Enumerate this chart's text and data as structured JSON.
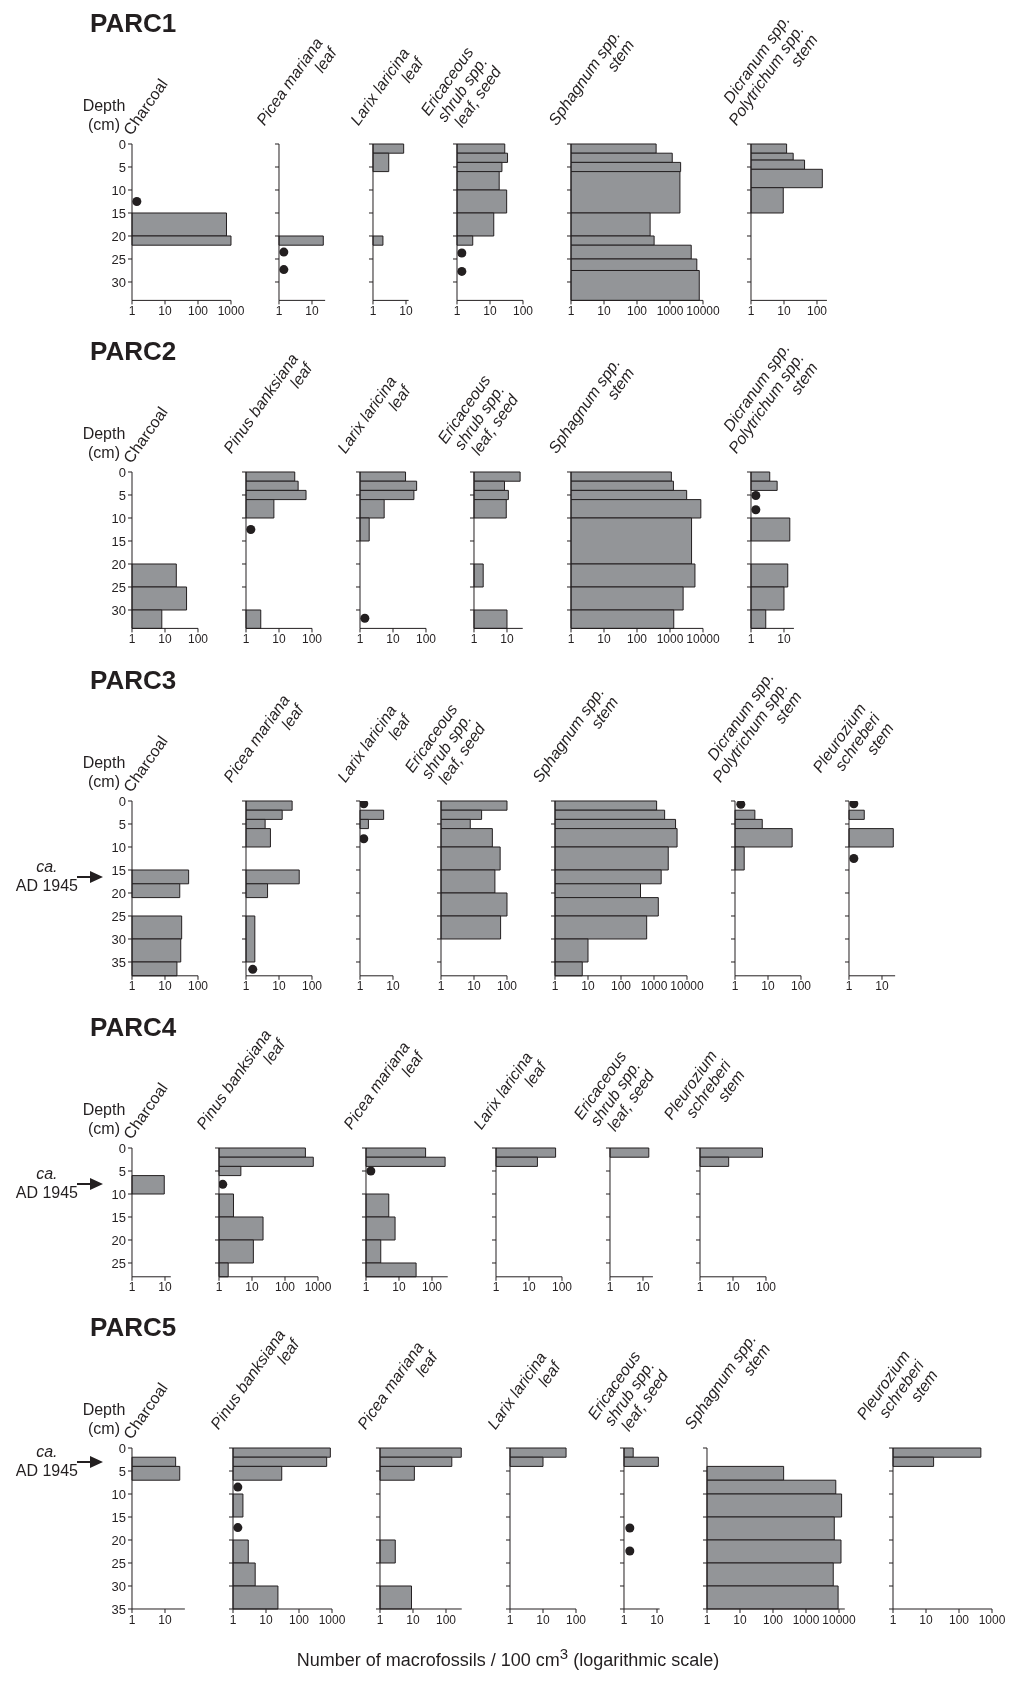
{
  "chart_data": [
    {
      "type": "histogram",
      "orientation": "horizontal",
      "log": "x",
      "annotations": [
        "PARC1"
      ],
      "ylabel": "Depth\n(cm)",
      "title": "Charcoal",
      "bins": [
        15,
        20,
        22
      ],
      "values": [
        730,
        1000
      ],
      "color": "#939598",
      "xlim": [
        1,
        1000
      ],
      "xticks": [
        1,
        10,
        100,
        1000
      ],
      "ylim": [
        34,
        0
      ],
      "yticks": [
        0,
        5,
        10,
        15,
        20,
        25,
        30
      ],
      "marker": "circle",
      "series": [
        {
          "type": "scatter",
          "x": [
            12.5
          ],
          "values": [
            1.4
          ],
          "color": "#231f20"
        }
      ]
    },
    {
      "type": "histogram",
      "orientation": "horizontal",
      "log": "x",
      "title": "Picea mariana\nleaf",
      "bins": [
        20,
        22
      ],
      "values": [
        22
      ],
      "color": "#939598",
      "xlim": [
        1,
        25
      ],
      "xticks": [
        1,
        10
      ],
      "ylim": [
        34,
        0
      ],
      "yticks": [
        0,
        5,
        10,
        15,
        20,
        25,
        30
      ],
      "tick_labels": "x",
      "marker": "circle",
      "series": [
        {
          "type": "scatter",
          "x": [
            23.5,
            27.3
          ],
          "values": [
            1.4,
            1.4
          ],
          "color": "#231f20"
        }
      ]
    },
    {
      "type": "histogram",
      "orientation": "horizontal",
      "log": "x",
      "title": "Larix laricina\nleaf",
      "bins": [
        0,
        2,
        6,
        20,
        22
      ],
      "values": [
        8.5,
        3,
        null,
        2
      ],
      "color": "#939598",
      "xlim": [
        1,
        12
      ],
      "xticks": [
        1,
        10
      ],
      "ylim": [
        34,
        0
      ],
      "yticks": [
        0,
        5,
        10,
        15,
        20,
        25,
        30
      ],
      "tick_labels": "x"
    },
    {
      "type": "histogram",
      "orientation": "horizontal",
      "log": "x",
      "title": "Ericaceous\nshrub spp.\nleaf, seed",
      "bins": [
        0,
        2,
        4,
        6,
        10,
        15,
        20,
        22
      ],
      "values": [
        28,
        34,
        23,
        19,
        32,
        13,
        3
      ],
      "color": "#939598",
      "xlim": [
        1,
        100
      ],
      "xticks": [
        1,
        10,
        100
      ],
      "ylim": [
        34,
        0
      ],
      "yticks": [
        0,
        5,
        10,
        15,
        20,
        25,
        30
      ],
      "tick_labels": "x",
      "marker": "circle",
      "series": [
        {
          "type": "scatter",
          "x": [
            23.7,
            27.7
          ],
          "values": [
            1.4,
            1.4
          ],
          "color": "#231f20"
        }
      ]
    },
    {
      "type": "histogram",
      "orientation": "horizontal",
      "log": "x",
      "title": "Sphagnum spp.\nstem",
      "bins": [
        0,
        2,
        4,
        6,
        15,
        20,
        22,
        25,
        27.5,
        34
      ],
      "values": [
        380,
        1170,
        2100,
        2000,
        250,
        330,
        4400,
        6500,
        7700
      ],
      "color": "#939598",
      "xlim": [
        1,
        10000
      ],
      "xticks": [
        1,
        10,
        100,
        1000,
        10000
      ],
      "ylim": [
        34,
        0
      ],
      "yticks": [
        0,
        5,
        10,
        15,
        20,
        25,
        30
      ],
      "tick_labels": "x"
    },
    {
      "type": "histogram",
      "orientation": "horizontal",
      "log": "x",
      "title": "Dicranum spp.\nPolytrichum spp.\nstem",
      "bins": [
        0,
        2,
        3.5,
        5.5,
        9.5,
        15
      ],
      "values": [
        12,
        19,
        42,
        145,
        9.5
      ],
      "color": "#939598",
      "xlim": [
        1,
        200
      ],
      "xticks": [
        1,
        10,
        100
      ],
      "ylim": [
        34,
        0
      ],
      "yticks": [
        0,
        5,
        10,
        15,
        20,
        25,
        30
      ],
      "tick_labels": "x"
    },
    {
      "type": "histogram",
      "orientation": "horizontal",
      "log": "x",
      "annotations": [
        "PARC2"
      ],
      "ylabel": "Depth\n(cm)",
      "title": "Charcoal",
      "bins": [
        20,
        25,
        30,
        34
      ],
      "values": [
        22,
        45,
        8
      ],
      "color": "#939598",
      "xlim": [
        1,
        100
      ],
      "xticks": [
        1,
        10,
        100
      ],
      "ylim": [
        34,
        0
      ],
      "yticks": [
        0,
        5,
        10,
        15,
        20,
        25,
        30
      ]
    },
    {
      "type": "histogram",
      "orientation": "horizontal",
      "log": "x",
      "title": "Pinus banksiana\nleaf",
      "bins": [
        0,
        2,
        4,
        6,
        10,
        30,
        34
      ],
      "values": [
        30,
        38,
        66,
        7,
        null,
        2.8
      ],
      "color": "#939598",
      "xlim": [
        1,
        100
      ],
      "xticks": [
        1,
        10,
        100
      ],
      "ylim": [
        34,
        0
      ],
      "yticks": [
        0,
        5,
        10,
        15,
        20,
        25,
        30
      ],
      "tick_labels": "x",
      "marker": "circle",
      "series": [
        {
          "type": "scatter",
          "x": [
            12.5
          ],
          "values": [
            1.4
          ],
          "color": "#231f20"
        }
      ]
    },
    {
      "type": "histogram",
      "orientation": "horizontal",
      "log": "x",
      "title": "Larix laricina\nleaf",
      "bins": [
        0,
        2,
        4,
        6,
        10,
        15
      ],
      "values": [
        24,
        52,
        43,
        5.4,
        1.9
      ],
      "color": "#939598",
      "xlim": [
        1,
        100
      ],
      "xticks": [
        1,
        10,
        100
      ],
      "ylim": [
        34,
        0
      ],
      "yticks": [
        0,
        5,
        10,
        15,
        20,
        25,
        30
      ],
      "tick_labels": "x",
      "marker": "circle",
      "series": [
        {
          "type": "scatter",
          "x": [
            31.8
          ],
          "values": [
            1.4
          ],
          "color": "#231f20"
        }
      ]
    },
    {
      "type": "histogram",
      "orientation": "horizontal",
      "log": "x",
      "title": "Ericaceous\nshrub spp.\nleaf, seed",
      "bins": [
        0,
        2,
        4,
        6,
        10,
        20,
        25,
        30,
        34
      ],
      "values": [
        25,
        8.4,
        11,
        9.5,
        null,
        1.9,
        null,
        10
      ],
      "color": "#939598",
      "xlim": [
        1,
        30
      ],
      "xticks": [
        1,
        10
      ],
      "ylim": [
        34,
        0
      ],
      "yticks": [
        0,
        5,
        10,
        15,
        20,
        25,
        30
      ],
      "tick_labels": "x"
    },
    {
      "type": "histogram",
      "orientation": "horizontal",
      "log": "x",
      "title": "Sphagnum spp.\nstem",
      "bins": [
        0,
        2,
        4,
        6,
        10,
        20,
        25,
        30,
        34
      ],
      "values": [
        1100,
        1270,
        3200,
        8600,
        4500,
        5700,
        2500,
        1300
      ],
      "color": "#939598",
      "xlim": [
        1,
        10000
      ],
      "xticks": [
        1,
        10,
        100,
        1000,
        10000
      ],
      "ylim": [
        34,
        0
      ],
      "yticks": [
        0,
        5,
        10,
        15,
        20,
        25,
        30
      ],
      "tick_labels": "x"
    },
    {
      "type": "histogram",
      "orientation": "horizontal",
      "log": "x",
      "title": "Dicranum spp.\nPolytrichum spp.\nstem",
      "bins": [
        0,
        2,
        4,
        10,
        15,
        20,
        25,
        30,
        34
      ],
      "values": [
        3.7,
        6.2,
        null,
        15,
        null,
        13,
        10,
        2.8
      ],
      "color": "#939598",
      "xlim": [
        1,
        20
      ],
      "xticks": [
        1,
        10
      ],
      "ylim": [
        34,
        0
      ],
      "yticks": [
        0,
        5,
        10,
        15,
        20,
        25,
        30
      ],
      "tick_labels": "x",
      "marker": "circle",
      "series": [
        {
          "type": "scatter",
          "x": [
            5.1,
            8.2
          ],
          "values": [
            1.4,
            1.4
          ],
          "color": "#231f20"
        }
      ]
    },
    {
      "type": "histogram",
      "orientation": "horizontal",
      "log": "x",
      "annotations": [
        "PARC3",
        "ca. AD 1945"
      ],
      "ylabel": "Depth\n(cm)",
      "title": "Charcoal",
      "bins": [
        15,
        18,
        21,
        25,
        30,
        35,
        38
      ],
      "values": [
        52,
        28,
        null,
        32,
        30,
        23
      ],
      "color": "#939598",
      "xlim": [
        1,
        100
      ],
      "xticks": [
        1,
        10,
        100
      ],
      "ylim": [
        38,
        0
      ],
      "yticks": [
        0,
        5,
        10,
        15,
        20,
        25,
        30,
        35
      ]
    },
    {
      "type": "histogram",
      "orientation": "horizontal",
      "log": "x",
      "title": "Picea mariana\nleaf",
      "bins": [
        0,
        2,
        4,
        6,
        10,
        15,
        18,
        21,
        25,
        35
      ],
      "values": [
        25,
        12.5,
        3.8,
        5.5,
        null,
        41,
        4.5,
        null,
        1.85
      ],
      "color": "#939598",
      "xlim": [
        1,
        100
      ],
      "xticks": [
        1,
        10,
        100
      ],
      "ylim": [
        38,
        0
      ],
      "yticks": [
        0,
        5,
        10,
        15,
        20,
        25,
        30,
        35
      ],
      "tick_labels": "x",
      "marker": "circle",
      "series": [
        {
          "type": "scatter",
          "x": [
            36.6
          ],
          "values": [
            1.6
          ],
          "color": "#231f20"
        }
      ]
    },
    {
      "type": "histogram",
      "orientation": "horizontal",
      "log": "x",
      "title": "Larix laricina\nleaf",
      "bins": [
        2,
        4,
        6
      ],
      "values": [
        5.2,
        1.8
      ],
      "color": "#939598",
      "xlim": [
        1,
        10
      ],
      "xticks": [
        1,
        10
      ],
      "ylim": [
        38,
        0
      ],
      "yticks": [
        0,
        5,
        10,
        15,
        20,
        25,
        30,
        35
      ],
      "tick_labels": "x",
      "marker": "circle",
      "series": [
        {
          "type": "scatter",
          "x": [
            0.6,
            8.2
          ],
          "values": [
            1.3,
            1.3
          ],
          "color": "#231f20"
        }
      ]
    },
    {
      "type": "histogram",
      "orientation": "horizontal",
      "log": "x",
      "title": "Ericaceous\nshrub spp.\nleaf, seed",
      "bins": [
        0,
        2,
        4,
        6,
        10,
        15,
        20,
        25,
        30
      ],
      "values": [
        100,
        17,
        7.7,
        36,
        62,
        43,
        100,
        64
      ],
      "color": "#939598",
      "xlim": [
        1,
        100
      ],
      "xticks": [
        1,
        10,
        100
      ],
      "ylim": [
        38,
        0
      ],
      "yticks": [
        0,
        5,
        10,
        15,
        20,
        25,
        30,
        35
      ],
      "tick_labels": "x"
    },
    {
      "type": "histogram",
      "orientation": "horizontal",
      "log": "x",
      "title": "Sphagnum spp.\nstem",
      "bins": [
        0,
        2,
        4,
        6,
        10,
        15,
        18,
        21,
        25,
        30,
        35,
        38
      ],
      "values": [
        1200,
        2100,
        4500,
        5000,
        2700,
        1650,
        390,
        1350,
        600,
        10,
        6.7
      ],
      "color": "#939598",
      "xlim": [
        1,
        10000
      ],
      "xticks": [
        1,
        10,
        100,
        1000,
        10000
      ],
      "ylim": [
        38,
        0
      ],
      "yticks": [
        0,
        5,
        10,
        15,
        20,
        25,
        30,
        35
      ],
      "tick_labels": "x"
    },
    {
      "type": "histogram",
      "orientation": "horizontal",
      "log": "x",
      "title": "Dicranum spp.\nPolytrichum spp.\nstem",
      "bins": [
        2,
        4,
        6,
        10,
        15
      ],
      "values": [
        4,
        6.7,
        54,
        1.9
      ],
      "color": "#939598",
      "xlim": [
        1,
        100
      ],
      "xticks": [
        1,
        10,
        100
      ],
      "ylim": [
        38,
        0
      ],
      "yticks": [
        0,
        5,
        10,
        15,
        20,
        25,
        30,
        35
      ],
      "tick_labels": "x",
      "marker": "circle",
      "series": [
        {
          "type": "scatter",
          "x": [
            0.7
          ],
          "values": [
            1.5
          ],
          "color": "#231f20"
        }
      ]
    },
    {
      "type": "histogram",
      "orientation": "horizontal",
      "log": "x",
      "title": "Pleurozium\nschreberi\nstem",
      "bins": [
        2,
        4,
        6,
        10
      ],
      "values": [
        2.9,
        null,
        22
      ],
      "color": "#939598",
      "xlim": [
        1,
        25
      ],
      "xticks": [
        1,
        10
      ],
      "ylim": [
        38,
        0
      ],
      "yticks": [
        0,
        5,
        10,
        15,
        20,
        25,
        30,
        35
      ],
      "tick_labels": "x",
      "marker": "circle",
      "series": [
        {
          "type": "scatter",
          "x": [
            0.6,
            12.5
          ],
          "values": [
            1.4,
            1.4
          ],
          "color": "#231f20"
        }
      ]
    },
    {
      "type": "histogram",
      "orientation": "horizontal",
      "log": "x",
      "annotations": [
        "PARC4",
        "ca. AD 1945"
      ],
      "ylabel": "Depth\n(cm)",
      "title": "Charcoal",
      "bins": [
        6,
        10
      ],
      "values": [
        9.5
      ],
      "color": "#939598",
      "xlim": [
        1,
        15
      ],
      "xticks": [
        1,
        10
      ],
      "ylim": [
        28,
        0
      ],
      "yticks": [
        0,
        5,
        10,
        15,
        20,
        25
      ]
    },
    {
      "type": "histogram",
      "orientation": "horizontal",
      "log": "x",
      "title": "Pinus banksiana\nleaf",
      "bins": [
        0,
        2,
        4,
        6,
        10,
        15,
        20,
        25,
        28
      ],
      "values": [
        415,
        720,
        4.6,
        null,
        2.75,
        21.6,
        11,
        1.9
      ],
      "color": "#939598",
      "xlim": [
        1,
        1000
      ],
      "xticks": [
        1,
        10,
        100,
        1000
      ],
      "ylim": [
        28,
        0
      ],
      "yticks": [
        0,
        5,
        10,
        15,
        20,
        25
      ],
      "tick_labels": "x",
      "marker": "circle",
      "series": [
        {
          "type": "scatter",
          "x": [
            7.9
          ],
          "values": [
            1.3
          ],
          "color": "#231f20"
        }
      ]
    },
    {
      "type": "histogram",
      "orientation": "horizontal",
      "log": "x",
      "title": "Picea mariana\nleaf",
      "bins": [
        0,
        2,
        4,
        10,
        15,
        20,
        25,
        28
      ],
      "values": [
        64,
        250,
        null,
        4.9,
        7.6,
        2.8,
        33
      ],
      "color": "#939598",
      "xlim": [
        1,
        300
      ],
      "xticks": [
        1,
        10,
        100
      ],
      "ylim": [
        28,
        0
      ],
      "yticks": [
        0,
        5,
        10,
        15,
        20,
        25
      ],
      "tick_labels": "x",
      "marker": "circle",
      "series": [
        {
          "type": "scatter",
          "x": [
            5
          ],
          "values": [
            1.4
          ],
          "color": "#231f20"
        }
      ]
    },
    {
      "type": "histogram",
      "orientation": "horizontal",
      "log": "x",
      "title": "Larix laricina\nleaf",
      "bins": [
        0,
        2,
        4
      ],
      "values": [
        64,
        18
      ],
      "color": "#939598",
      "xlim": [
        1,
        100
      ],
      "xticks": [
        1,
        10,
        100
      ],
      "ylim": [
        28,
        0
      ],
      "yticks": [
        0,
        5,
        10,
        15,
        20,
        25
      ],
      "tick_labels": "x"
    },
    {
      "type": "histogram",
      "orientation": "horizontal",
      "log": "x",
      "title": "Ericaceous\nshrub spp.\nleaf, seed",
      "bins": [
        0,
        2
      ],
      "values": [
        15
      ],
      "color": "#939598",
      "xlim": [
        1,
        20
      ],
      "xticks": [
        1,
        10
      ],
      "ylim": [
        28,
        0
      ],
      "yticks": [
        0,
        5,
        10,
        15,
        20,
        25
      ],
      "tick_labels": "x"
    },
    {
      "type": "histogram",
      "orientation": "horizontal",
      "log": "x",
      "title": "Pleurozium\nschreberi\nstem",
      "bins": [
        0,
        2,
        4
      ],
      "values": [
        78,
        7.4
      ],
      "color": "#939598",
      "xlim": [
        1,
        100
      ],
      "xticks": [
        1,
        10,
        100
      ],
      "ylim": [
        28,
        0
      ],
      "yticks": [
        0,
        5,
        10,
        15,
        20,
        25
      ],
      "tick_labels": "x"
    },
    {
      "type": "histogram",
      "orientation": "horizontal",
      "log": "x",
      "annotations": [
        "PARC5",
        "ca. AD 1945"
      ],
      "ylabel": "Depth\n(cm)",
      "title": "Charcoal",
      "bins": [
        2,
        4,
        7
      ],
      "values": [
        21,
        28
      ],
      "color": "#939598",
      "xlim": [
        1,
        40
      ],
      "xticks": [
        1,
        10
      ],
      "ylim": [
        35,
        0
      ],
      "yticks": [
        0,
        5,
        10,
        15,
        20,
        25,
        30,
        35
      ]
    },
    {
      "type": "histogram",
      "orientation": "horizontal",
      "log": "x",
      "title": "Pinus banksiana\nleaf",
      "bins": [
        0,
        2,
        4,
        7,
        10,
        15,
        20,
        25,
        30,
        35
      ],
      "values": [
        890,
        690,
        30,
        null,
        2,
        null,
        2.9,
        4.7,
        23
      ],
      "color": "#939598",
      "xlim": [
        1,
        1000
      ],
      "xticks": [
        1,
        10,
        100,
        1000
      ],
      "ylim": [
        35,
        0
      ],
      "yticks": [
        0,
        5,
        10,
        15,
        20,
        25,
        30,
        35
      ],
      "tick_labels": "x",
      "marker": "circle",
      "series": [
        {
          "type": "scatter",
          "x": [
            8.5,
            17.3
          ],
          "values": [
            1.4,
            1.4
          ],
          "color": "#231f20"
        }
      ]
    },
    {
      "type": "histogram",
      "orientation": "horizontal",
      "log": "x",
      "title": "Picea mariana\nleaf",
      "bins": [
        0,
        2,
        4,
        7,
        20,
        25,
        30,
        35
      ],
      "values": [
        290,
        150,
        11,
        null,
        2.9,
        null,
        9
      ],
      "color": "#939598",
      "xlim": [
        1,
        300
      ],
      "xticks": [
        1,
        10,
        100
      ],
      "ylim": [
        35,
        0
      ],
      "yticks": [
        0,
        5,
        10,
        15,
        20,
        25,
        30,
        35
      ],
      "tick_labels": "x"
    },
    {
      "type": "histogram",
      "orientation": "horizontal",
      "log": "x",
      "title": "Larix laricina\nleaf",
      "bins": [
        0,
        2,
        4
      ],
      "values": [
        50,
        10
      ],
      "color": "#939598",
      "xlim": [
        1,
        100
      ],
      "xticks": [
        1,
        10,
        100
      ],
      "ylim": [
        35,
        0
      ],
      "yticks": [
        0,
        5,
        10,
        15,
        20,
        25,
        30,
        35
      ],
      "tick_labels": "x"
    },
    {
      "type": "histogram",
      "orientation": "horizontal",
      "log": "x",
      "title": "Ericaceous\nshrub spp.\nleaf, seed",
      "bins": [
        0,
        2,
        4
      ],
      "values": [
        1.9,
        11
      ],
      "color": "#939598",
      "xlim": [
        1,
        12
      ],
      "xticks": [
        1,
        10
      ],
      "ylim": [
        35,
        0
      ],
      "yticks": [
        0,
        5,
        10,
        15,
        20,
        25,
        30,
        35
      ],
      "tick_labels": "x",
      "marker": "circle",
      "series": [
        {
          "type": "scatter",
          "x": [
            17.4,
            22.4
          ],
          "values": [
            1.5,
            1.5
          ],
          "color": "#231f20"
        }
      ]
    },
    {
      "type": "histogram",
      "orientation": "horizontal",
      "log": "x",
      "title": "Sphagnum spp.\nstem",
      "bins": [
        4,
        7,
        10,
        15,
        20,
        25,
        30,
        35
      ],
      "values": [
        210,
        8000,
        12000,
        7200,
        11500,
        6700,
        9400
      ],
      "color": "#939598",
      "xlim": [
        1,
        15000
      ],
      "xticks": [
        1,
        10,
        100,
        1000,
        10000
      ],
      "ylim": [
        35,
        0
      ],
      "yticks": [
        0,
        5,
        10,
        15,
        20,
        25,
        30,
        35
      ],
      "tick_labels": "x"
    },
    {
      "type": "histogram",
      "orientation": "horizontal",
      "log": "x",
      "title": "Pleurozium\nschreberi\nstem",
      "bins": [
        0,
        2,
        4
      ],
      "values": [
        460,
        17
      ],
      "color": "#939598",
      "xlim": [
        1,
        1000
      ],
      "xticks": [
        1,
        10,
        100,
        1000
      ],
      "ylim": [
        35,
        0
      ],
      "yticks": [
        0,
        5,
        10,
        15,
        20,
        25,
        30,
        35
      ],
      "tick_labels": "x"
    },
    {
      "type": "other",
      "annotations": [
        "Number of macrofossils / 100 cm$^{3}$ (logarithmic scale)"
      ]
    }
  ]
}
